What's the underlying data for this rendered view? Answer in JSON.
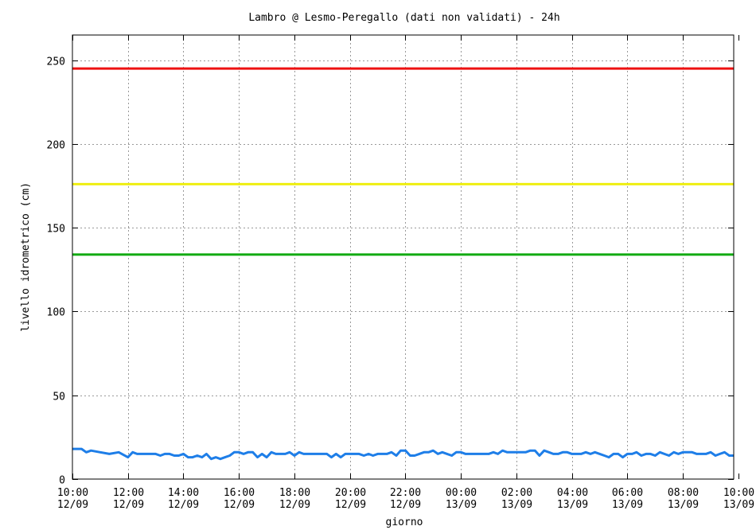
{
  "chart_data": {
    "type": "line",
    "title": "Lambro @ Lesmo-Peregallo (dati non validati) - 24h",
    "xlabel": "giorno",
    "ylabel": "livello idrometrico (cm)",
    "ylim": [
      0,
      265
    ],
    "yticks": [
      0,
      50,
      100,
      150,
      200,
      250
    ],
    "xlim": [
      0,
      23.83
    ],
    "xticks": [
      {
        "x": 0,
        "time": "10:00",
        "date": "12/09"
      },
      {
        "x": 2,
        "time": "12:00",
        "date": "12/09"
      },
      {
        "x": 4,
        "time": "14:00",
        "date": "12/09"
      },
      {
        "x": 6,
        "time": "16:00",
        "date": "12/09"
      },
      {
        "x": 8,
        "time": "18:00",
        "date": "12/09"
      },
      {
        "x": 10,
        "time": "20:00",
        "date": "12/09"
      },
      {
        "x": 12,
        "time": "22:00",
        "date": "12/09"
      },
      {
        "x": 14,
        "time": "00:00",
        "date": "13/09"
      },
      {
        "x": 16,
        "time": "02:00",
        "date": "13/09"
      },
      {
        "x": 18,
        "time": "04:00",
        "date": "13/09"
      },
      {
        "x": 20,
        "time": "06:00",
        "date": "13/09"
      },
      {
        "x": 22,
        "time": "08:00",
        "date": "13/09"
      },
      {
        "x": 24,
        "time": "10:00",
        "date": "13/09"
      }
    ],
    "grid": true,
    "thresholds": [
      {
        "value": 245,
        "color": "#ee1111"
      },
      {
        "value": 176,
        "color": "#eeee11"
      },
      {
        "value": 134,
        "color": "#11aa11"
      }
    ],
    "series": [
      {
        "color": "#1e7ee8",
        "x": [
          0,
          0.33,
          0.5,
          0.67,
          1.0,
          1.33,
          1.67,
          2.0,
          2.17,
          2.33,
          2.67,
          3.0,
          3.17,
          3.33,
          3.5,
          3.67,
          3.83,
          4.0,
          4.17,
          4.33,
          4.5,
          4.67,
          4.83,
          5.0,
          5.17,
          5.33,
          5.5,
          5.67,
          5.83,
          6.0,
          6.17,
          6.33,
          6.5,
          6.67,
          6.83,
          7.0,
          7.17,
          7.33,
          7.5,
          7.67,
          7.83,
          8.0,
          8.17,
          8.33,
          8.5,
          8.67,
          8.83,
          9.0,
          9.17,
          9.33,
          9.5,
          9.67,
          9.83,
          10.0,
          10.17,
          10.33,
          10.5,
          10.67,
          10.83,
          11.0,
          11.17,
          11.33,
          11.5,
          11.67,
          11.83,
          12.0,
          12.17,
          12.33,
          12.5,
          12.67,
          12.83,
          13.0,
          13.17,
          13.33,
          13.5,
          13.67,
          13.83,
          14.0,
          14.17,
          14.33,
          14.5,
          14.67,
          14.83,
          15.0,
          15.17,
          15.33,
          15.5,
          15.67,
          15.83,
          16.0,
          16.17,
          16.33,
          16.5,
          16.67,
          16.83,
          17.0,
          17.17,
          17.33,
          17.5,
          17.67,
          17.83,
          18.0,
          18.17,
          18.33,
          18.5,
          18.67,
          18.83,
          19.0,
          19.17,
          19.33,
          19.5,
          19.67,
          19.83,
          20.0,
          20.17,
          20.33,
          20.5,
          20.67,
          20.83,
          21.0,
          21.17,
          21.33,
          21.5,
          21.67,
          21.83,
          22.0,
          22.17,
          22.33,
          22.5,
          22.67,
          22.83,
          23.0,
          23.17,
          23.33,
          23.5,
          23.67,
          23.83
        ],
        "y": [
          18,
          18,
          16,
          17,
          16,
          15,
          16,
          13,
          16,
          15,
          15,
          15,
          14,
          15,
          15,
          14,
          14,
          15,
          13,
          13,
          14,
          13,
          15,
          12,
          13,
          12,
          13,
          14,
          16,
          16,
          15,
          16,
          16,
          13,
          15,
          13,
          16,
          15,
          15,
          15,
          16,
          14,
          16,
          15,
          15,
          15,
          15,
          15,
          15,
          13,
          15,
          13,
          15,
          15,
          15,
          15,
          14,
          15,
          14,
          15,
          15,
          15,
          16,
          14,
          17,
          17,
          14,
          14,
          15,
          16,
          16,
          17,
          15,
          16,
          15,
          14,
          16,
          16,
          15,
          15,
          15,
          15,
          15,
          15,
          16,
          15,
          17,
          16,
          16,
          16,
          16,
          16,
          17,
          17,
          14,
          17,
          16,
          15,
          15,
          16,
          16,
          15,
          15,
          15,
          16,
          15,
          16,
          15,
          14,
          13,
          15,
          15,
          13,
          15,
          15,
          16,
          14,
          15,
          15,
          14,
          16,
          15,
          14,
          16,
          15,
          16,
          16,
          16,
          15,
          15,
          15,
          16,
          14,
          15,
          16,
          14,
          14
        ]
      }
    ]
  }
}
